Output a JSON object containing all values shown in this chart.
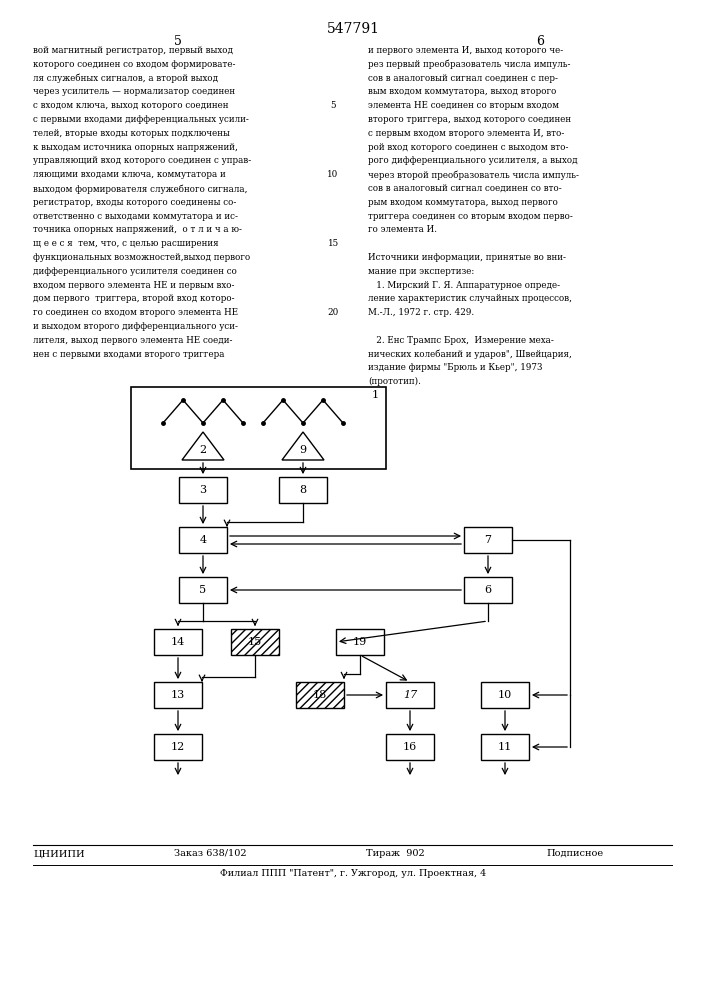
{
  "patent_number": "547791",
  "page_left": "5",
  "page_right": "6",
  "left_text": [
    "вой магнитный регистратор, первый выход",
    "которого соединен со входом формировате-",
    "ля служебных сигналов, а второй выход",
    "через усилитель — нормализатор соединен",
    "с входом ключа, выход которого соединен",
    "с первыми входами дифференциальных усили-",
    "телей, вторые входы которых подключены",
    "к выходам источника опорных напряжений,",
    "управляющий вход которого соединен с управ-",
    "ляющими входами ключа, коммутатора и",
    "выходом формирователя служебного сигнала,",
    "регистратор, входы которого соединены со-",
    "ответственно с выходами коммутатора и ис-",
    "точника опорных напряжений,  о т л и ч а ю-",
    "щ е е с я  тем, что, с целью расширения",
    "функциональных возможностей,выход первого",
    "дифференциального усилителя соединен со",
    "входом первого элемента НЕ и первым вхо-",
    "дом первого  триггера, второй вход которо-",
    "го соединен со входом второго элемента НЕ",
    "и выходом второго дифференциального уси-",
    "лителя, выход первого элемента НЕ соеди-",
    "нен с первыми входами второго триггера"
  ],
  "right_text": [
    "и первого элемента И, выход которого че-",
    "рез первый преобразователь числа импуль-",
    "сов в аналоговый сигнал соединен с пер-",
    "вым входом коммутатора, выход второго",
    "элемента НЕ соединен со вторым входом",
    "второго триггера, выход которого соединен",
    "с первым входом второго элемента И, вто-",
    "рой вход которого соединен с выходом вто-",
    "рого дифференциального усилителя, а выход",
    "через второй преобразователь числа импуль-",
    "сов в аналоговый сигнал соединен со вто-",
    "рым входом коммутатора, выход первого",
    "триггера соединен со вторым входом перво-",
    "го элемента И.",
    "",
    "Источники информации, принятые во вни-",
    "мание при экспертизе:",
    "   1. Мирский Г. Я. Аппаратурное опреде-",
    "ление характеристик случайных процессов,",
    "М.-Л., 1972 г. стр. 429.",
    "",
    "   2. Енс Трампс Брох,  Измерение меха-",
    "нических колебаний и ударов\", Швейцария,",
    "издание фирмы \"Брюль и Кьер\", 1973",
    "(прототип)."
  ],
  "line_numbers": [
    5,
    10,
    15,
    20
  ],
  "bottom_text_left": "ЦНИИПИ",
  "bottom_order": "Заказ 638/102",
  "bottom_print": "Тираж  902",
  "bottom_sign": "Подписное",
  "bottom_address": "Филиал ППП \"Патент\", г. Ужгород, ул. Проектная, 4",
  "bg_color": "#ffffff",
  "text_color": "#000000"
}
